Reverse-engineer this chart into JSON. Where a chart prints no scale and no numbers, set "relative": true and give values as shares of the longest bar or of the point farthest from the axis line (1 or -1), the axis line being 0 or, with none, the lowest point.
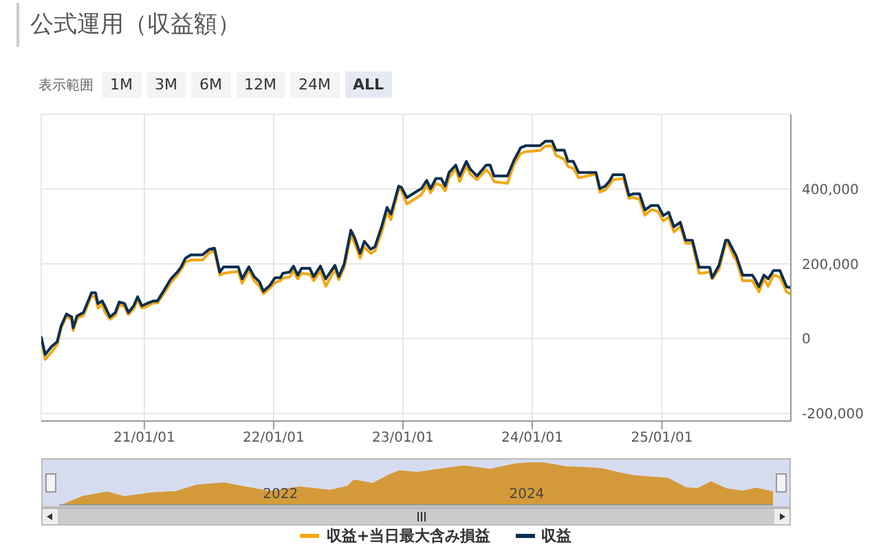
{
  "chart_data": [
    {
      "type": "line",
      "title": "公式運用（収益額）",
      "annotations": [
        "表示範囲",
        "1M",
        "3M",
        "6M",
        "12M",
        "24M",
        "ALL"
      ],
      "x": [
        "2020-03-16",
        "2020-03-27",
        "2020-04-15",
        "2020-04-30",
        "2020-05-11",
        "2020-05-26",
        "2020-06-10",
        "2020-06-14",
        "2020-06-25",
        "2020-07-13",
        "2020-08-05",
        "2020-08-16",
        "2020-08-23",
        "2020-09-04",
        "2020-09-11",
        "2020-09-26",
        "2020-10-11",
        "2020-10-22",
        "2020-11-06",
        "2020-11-17",
        "2020-12-02",
        "2020-12-13",
        "2020-12-25",
        "2021-01-08",
        "2021-01-27",
        "2021-02-07",
        "2021-02-26",
        "2021-03-17",
        "2021-04-04",
        "2021-04-15",
        "2021-04-27",
        "2021-05-12",
        "2021-06-14",
        "2021-07-03",
        "2021-07-18",
        "2021-08-02",
        "2021-08-13",
        "2021-09-23",
        "2021-10-04",
        "2021-10-23",
        "2021-11-07",
        "2021-11-22",
        "2021-12-03",
        "2021-12-21",
        "2022-01-05",
        "2022-01-20",
        "2022-01-27",
        "2022-02-15",
        "2022-02-26",
        "2022-03-10",
        "2022-03-21",
        "2022-04-13",
        "2022-04-24",
        "2022-05-13",
        "2022-05-28",
        "2022-06-23",
        "2022-07-04",
        "2022-07-19",
        "2022-08-07",
        "2022-08-18",
        "2022-09-02",
        "2022-09-14",
        "2022-10-02",
        "2022-10-14",
        "2022-11-02",
        "2022-11-17",
        "2022-11-28",
        "2022-12-20",
        "2022-12-28",
        "2023-01-12",
        "2023-02-11",
        "2023-02-22",
        "2023-03-09",
        "2023-03-20",
        "2023-04-04",
        "2023-04-19",
        "2023-04-30",
        "2023-05-11",
        "2023-05-30",
        "2023-06-10",
        "2023-06-29",
        "2023-07-10",
        "2023-07-29",
        "2023-08-24",
        "2023-09-04",
        "2023-09-15",
        "2023-10-23",
        "2023-11-10",
        "2023-11-29",
        "2023-12-14",
        "2024-01-23",
        "2024-02-07",
        "2024-02-26",
        "2024-03-08",
        "2024-03-31",
        "2024-04-11",
        "2024-04-26",
        "2024-05-11",
        "2024-06-29",
        "2024-07-10",
        "2024-07-25",
        "2024-08-05",
        "2024-08-16",
        "2024-09-15",
        "2024-09-30",
        "2024-10-11",
        "2024-10-30",
        "2024-11-14",
        "2024-12-02",
        "2024-12-21",
        "2025-01-05",
        "2025-01-20",
        "2025-02-04",
        "2025-02-22",
        "2025-03-09",
        "2025-03-28",
        "2025-04-16",
        "2025-05-16",
        "2025-05-23",
        "2025-06-11",
        "2025-06-30",
        "2025-07-07",
        "2025-07-22",
        "2025-07-30",
        "2025-08-17",
        "2025-09-13",
        "2025-09-20",
        "2025-10-02",
        "2025-10-16",
        "2025-10-28",
        "2025-11-12",
        "2025-11-30",
        "2025-12-19",
        "2025-12-31"
      ],
      "series": [
        {
          "name": "収益+当日最大含み損益",
          "color": "#f0a818",
          "values": [
            0,
            -55000,
            -35000,
            -15000,
            28000,
            60000,
            50000,
            22000,
            55000,
            62000,
            115000,
            110000,
            82000,
            92000,
            72000,
            52000,
            62000,
            90000,
            86000,
            64000,
            80000,
            104000,
            82000,
            86000,
            96000,
            96000,
            122000,
            150000,
            170000,
            185000,
            205000,
            210000,
            210000,
            230000,
            235000,
            170000,
            175000,
            180000,
            148000,
            182000,
            155000,
            140000,
            120000,
            135000,
            150000,
            155000,
            162000,
            165000,
            182000,
            160000,
            175000,
            172000,
            155000,
            180000,
            140000,
            185000,
            158000,
            190000,
            275000,
            255000,
            215000,
            245000,
            228000,
            235000,
            285000,
            338000,
            318000,
            400000,
            396000,
            360000,
            378000,
            385000,
            410000,
            390000,
            415000,
            410000,
            395000,
            430000,
            455000,
            420000,
            462000,
            440000,
            425000,
            452000,
            440000,
            420000,
            415000,
            465000,
            495000,
            500000,
            503000,
            515000,
            515000,
            490000,
            480000,
            460000,
            455000,
            430000,
            440000,
            392000,
            398000,
            410000,
            425000,
            428000,
            375000,
            378000,
            372000,
            330000,
            345000,
            340000,
            315000,
            325000,
            285000,
            300000,
            255000,
            255000,
            175000,
            178000,
            160000,
            185000,
            255000,
            255000,
            220000,
            210000,
            155000,
            155000,
            145000,
            125000,
            160000,
            140000,
            170000,
            165000,
            125000,
            119000
          ]
        },
        {
          "name": "収益",
          "color": "#0d2f4f",
          "values": [
            4000,
            -42000,
            -20000,
            -8000,
            34000,
            66000,
            58000,
            29000,
            61000,
            70000,
            123000,
            123000,
            94000,
            101000,
            88000,
            58000,
            70000,
            98000,
            94000,
            70000,
            88000,
            112000,
            88000,
            94000,
            101000,
            101000,
            130000,
            160000,
            178000,
            192000,
            215000,
            224000,
            224000,
            239000,
            242000,
            178000,
            192000,
            192000,
            160000,
            192000,
            166000,
            152000,
            127000,
            142000,
            163000,
            163000,
            175000,
            178000,
            194000,
            170000,
            188000,
            188000,
            166000,
            194000,
            160000,
            196000,
            166000,
            199000,
            290000,
            269000,
            228000,
            260000,
            239000,
            246000,
            300000,
            351000,
            333000,
            408000,
            404000,
            377000,
            395000,
            401000,
            423000,
            401000,
            428000,
            428000,
            408000,
            444000,
            464000,
            435000,
            474000,
            453000,
            435000,
            464000,
            464000,
            435000,
            435000,
            476000,
            510000,
            516000,
            516000,
            528000,
            528000,
            504000,
            504000,
            474000,
            474000,
            444000,
            444000,
            401000,
            408000,
            420000,
            438000,
            438000,
            383000,
            387000,
            387000,
            344000,
            356000,
            356000,
            329000,
            338000,
            299000,
            311000,
            263000,
            263000,
            191000,
            191000,
            163000,
            196000,
            263000,
            263000,
            235000,
            221000,
            170000,
            170000,
            160000,
            139000,
            170000,
            160000,
            182000,
            182000,
            139000,
            136000
          ]
        }
      ],
      "xlim": [
        "2020-03-16",
        "2025-12-31"
      ],
      "xticks": [
        {
          "value": "2021-01-01",
          "label": "21/01/01"
        },
        {
          "value": "2022-01-01",
          "label": "22/01/01"
        },
        {
          "value": "2023-01-01",
          "label": "23/01/01"
        },
        {
          "value": "2024-01-01",
          "label": "24/01/01"
        },
        {
          "value": "2025-01-01",
          "label": "25/01/01"
        }
      ],
      "ylim": [
        -220000,
        600000
      ],
      "yticks": [
        {
          "value": -200000,
          "label": "-200,000"
        },
        {
          "value": 0,
          "label": "0"
        },
        {
          "value": 200000,
          "label": "200,000"
        },
        {
          "value": 400000,
          "label": "400,000"
        }
      ],
      "grid": true,
      "legend": "bottom",
      "line_style": "solid"
    },
    {
      "type": "area",
      "relative": true,
      "color": "#d49a3a",
      "x": [
        "2020-03-27",
        "2020-05-26",
        "2020-08-05",
        "2020-09-26",
        "2020-12-13",
        "2021-02-26",
        "2021-04-27",
        "2021-07-18",
        "2021-09-23",
        "2021-12-03",
        "2022-02-26",
        "2022-05-28",
        "2022-07-19",
        "2022-08-07",
        "2022-10-02",
        "2022-11-17",
        "2022-12-20",
        "2023-02-11",
        "2023-04-04",
        "2023-06-29",
        "2023-09-15",
        "2023-11-29",
        "2024-02-07",
        "2024-04-26",
        "2024-06-29",
        "2024-08-16",
        "2024-09-30",
        "2024-11-14",
        "2025-01-05",
        "2025-02-22",
        "2025-04-16",
        "2025-05-23",
        "2025-06-30",
        "2025-08-17",
        "2025-10-02",
        "2025-11-12",
        "2025-12-31"
      ],
      "values": [
        0,
        0.2,
        0.3,
        0.19,
        0.28,
        0.31,
        0.46,
        0.51,
        0.41,
        0.31,
        0.42,
        0.34,
        0.43,
        0.58,
        0.5,
        0.69,
        0.8,
        0.76,
        0.82,
        0.91,
        0.83,
        0.96,
        1,
        0.89,
        0.87,
        0.84,
        0.75,
        0.68,
        0.65,
        0.62,
        0.4,
        0.38,
        0.54,
        0.37,
        0.32,
        0.39,
        0.3
      ],
      "xlim": [
        "2020-03-16",
        "2025-12-31"
      ],
      "xticks": [
        {
          "value": "2022-01-01",
          "label": "2022"
        },
        {
          "value": "2024-01-01",
          "label": "2024"
        }
      ]
    }
  ]
}
